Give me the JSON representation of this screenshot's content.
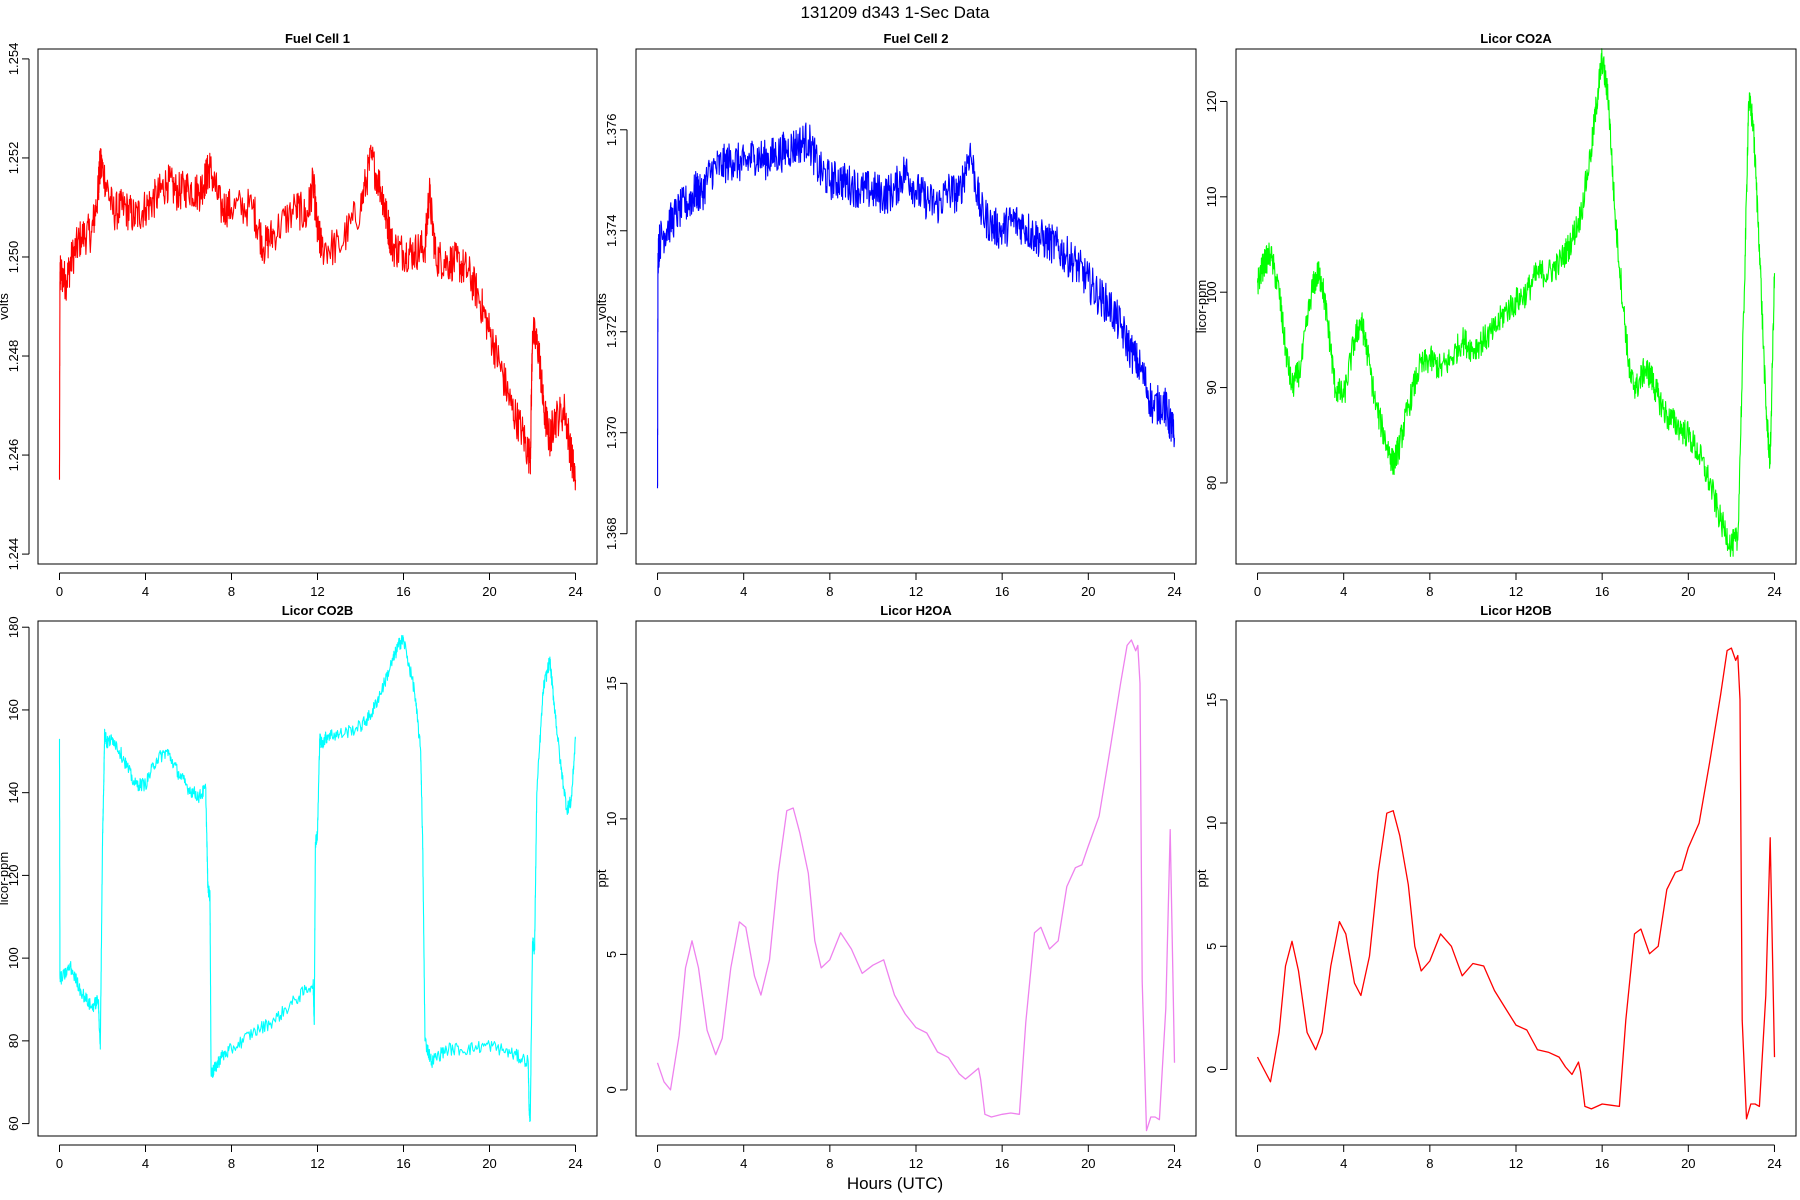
{
  "figure": {
    "title": "131209   d343   1-Sec Data",
    "xlabel": "Hours (UTC)"
  },
  "chart_data": [
    {
      "type": "line",
      "title": "Fuel Cell 1",
      "xlabel": "",
      "ylabel": "volts",
      "color": "#ff0000",
      "xlim": [
        -1,
        25
      ],
      "ylim": [
        1.2438,
        1.2542
      ],
      "xticks": [
        0,
        4,
        8,
        12,
        16,
        20,
        24
      ],
      "yticks": [
        1.244,
        1.246,
        1.248,
        1.25,
        1.252,
        1.254
      ],
      "ytick_labels": [
        "1.244",
        "1.246",
        "1.248",
        "1.250",
        "1.252",
        "1.254"
      ],
      "noise": 0.0004,
      "x": [
        0,
        0.02,
        0.05,
        0.3,
        0.6,
        1,
        1.5,
        1.8,
        1.85,
        2,
        2.5,
        3,
        3.5,
        4,
        4.5,
        5,
        5.5,
        6,
        6.5,
        6.8,
        7,
        7.5,
        8,
        9,
        9.5,
        10,
        11,
        11.5,
        11.8,
        12,
        12.2,
        13,
        14,
        14.5,
        15,
        15.2,
        15.5,
        16,
        16.5,
        17,
        17.2,
        17.5,
        18,
        18.5,
        19,
        19.5,
        20,
        20.5,
        21,
        21.5,
        21.9,
        22,
        22.3,
        22.5,
        22.8,
        23,
        23.5,
        23.8,
        24
      ],
      "y": [
        1.2455,
        1.2495,
        1.2497,
        1.2495,
        1.25,
        1.2504,
        1.2505,
        1.2513,
        1.2518,
        1.2518,
        1.2509,
        1.251,
        1.2508,
        1.251,
        1.2512,
        1.2515,
        1.2513,
        1.2514,
        1.2513,
        1.2516,
        1.2518,
        1.251,
        1.251,
        1.251,
        1.2502,
        1.2505,
        1.251,
        1.2508,
        1.2515,
        1.2505,
        1.2502,
        1.2502,
        1.251,
        1.252,
        1.2513,
        1.2508,
        1.2502,
        1.2501,
        1.2501,
        1.2502,
        1.2513,
        1.25,
        1.2499,
        1.2499,
        1.2497,
        1.2492,
        1.2485,
        1.2478,
        1.247,
        1.2465,
        1.2459,
        1.2485,
        1.2481,
        1.247,
        1.2463,
        1.2467,
        1.2469,
        1.246,
        1.2455
      ]
    },
    {
      "type": "line",
      "title": "Fuel Cell 2",
      "xlabel": "",
      "ylabel": "volts",
      "color": "#0000ff",
      "xlim": [
        -1,
        25
      ],
      "ylim": [
        1.3674,
        1.3776
      ],
      "xticks": [
        0,
        4,
        8,
        12,
        16,
        20,
        24
      ],
      "yticks": [
        1.368,
        1.37,
        1.372,
        1.374,
        1.376
      ],
      "ytick_labels": [
        "1.368",
        "1.370",
        "1.372",
        "1.374",
        "1.376"
      ],
      "noise": 0.0004,
      "x": [
        0,
        0.02,
        0.1,
        0.5,
        1,
        1.5,
        1.8,
        2,
        2.5,
        3,
        3.5,
        4,
        4.5,
        5,
        5.5,
        6,
        6.5,
        7,
        7.5,
        8,
        8.5,
        9,
        9.5,
        10,
        10.5,
        11,
        11.5,
        12,
        12.5,
        13,
        13.5,
        14,
        14.5,
        15,
        15.5,
        16,
        16.5,
        17,
        17.5,
        18,
        18.5,
        19,
        19.5,
        20,
        20.5,
        21,
        21.5,
        22,
        22.5,
        23,
        23.5,
        23.8,
        24
      ],
      "y": [
        1.3689,
        1.3735,
        1.3738,
        1.3741,
        1.3744,
        1.3746,
        1.3748,
        1.3747,
        1.3752,
        1.3753,
        1.3754,
        1.3753,
        1.3755,
        1.3754,
        1.3755,
        1.3756,
        1.3757,
        1.3758,
        1.3752,
        1.375,
        1.375,
        1.3749,
        1.3748,
        1.3748,
        1.3747,
        1.3748,
        1.3752,
        1.3748,
        1.3746,
        1.3745,
        1.3748,
        1.3747,
        1.3756,
        1.3744,
        1.3741,
        1.374,
        1.3742,
        1.3741,
        1.3739,
        1.3738,
        1.3737,
        1.3735,
        1.3733,
        1.373,
        1.3727,
        1.3725,
        1.3721,
        1.3716,
        1.3712,
        1.3705,
        1.3706,
        1.3702,
        1.3699
      ]
    },
    {
      "type": "line",
      "title": "Licor CO2A",
      "xlabel": "",
      "ylabel": "licor-ppm",
      "color": "#00ff00",
      "xlim": [
        -1,
        25
      ],
      "ylim": [
        71.5,
        125.5
      ],
      "xticks": [
        0,
        4,
        8,
        12,
        16,
        20,
        24
      ],
      "yticks": [
        80,
        90,
        100,
        110,
        120
      ],
      "ytick_labels": [
        "80",
        "90",
        "100",
        "110",
        "120"
      ],
      "noise": 1.5,
      "x": [
        0,
        0.3,
        0.6,
        1,
        1.3,
        1.6,
        2,
        2.5,
        2.8,
        3,
        3.3,
        3.6,
        4,
        4.5,
        4.8,
        5,
        5.5,
        6,
        6.3,
        6.6,
        7,
        7.5,
        8,
        8.5,
        9,
        9.5,
        10,
        10.5,
        11,
        11.5,
        12,
        12.5,
        13,
        13.5,
        14,
        14.5,
        15,
        15.5,
        15.8,
        16,
        16.3,
        16.6,
        17,
        17.3,
        17.6,
        18,
        18.3,
        18.6,
        19,
        19.5,
        20,
        20.5,
        21,
        21.5,
        22,
        22.3,
        22.6,
        22.8,
        23,
        23.3,
        23.6,
        23.8,
        24
      ],
      "y": [
        101,
        103,
        104,
        100,
        94,
        90,
        92,
        100,
        102,
        101,
        96,
        90,
        89,
        95,
        97,
        95,
        88,
        84,
        82,
        84,
        88,
        92,
        93,
        92,
        93,
        95,
        94,
        95,
        96,
        98,
        99,
        100,
        102,
        102,
        103,
        105,
        108,
        115,
        121,
        124.5,
        120,
        108,
        98,
        91,
        90,
        92,
        91,
        89,
        87,
        86,
        85,
        83,
        80,
        76,
        73.5,
        74,
        100,
        120,
        118,
        105,
        88,
        82,
        102
      ]
    },
    {
      "type": "line",
      "title": "Licor CO2B",
      "xlabel": "",
      "ylabel": "licor-ppm",
      "color": "#00ffff",
      "xlim": [
        -1,
        25
      ],
      "ylim": [
        57,
        181.5
      ],
      "xticks": [
        0,
        4,
        8,
        12,
        16,
        20,
        24
      ],
      "yticks": [
        60,
        80,
        100,
        120,
        140,
        160,
        180
      ],
      "ytick_labels": [
        "60",
        "80",
        "100",
        "120",
        "140",
        "160",
        "180"
      ],
      "noise": 1.6,
      "x": [
        0,
        0.02,
        0.1,
        0.5,
        1,
        1.5,
        1.8,
        1.9,
        2,
        2.05,
        2.1,
        2.2,
        2.5,
        3,
        3.5,
        4,
        4.5,
        5,
        5.5,
        6,
        6.5,
        6.8,
        6.9,
        7,
        7.05,
        7.2,
        7.5,
        8,
        9,
        10,
        11,
        11.8,
        11.85,
        11.9,
        12,
        12.1,
        12.2,
        12.5,
        13,
        14,
        14.5,
        15,
        15.5,
        15.8,
        16,
        16.5,
        16.8,
        16.9,
        17,
        17.3,
        18,
        19,
        20,
        21,
        21.8,
        21.85,
        21.9,
        22,
        22.1,
        22.2,
        22.5,
        22.8,
        23,
        23.3,
        23.6,
        23.8,
        24
      ],
      "y": [
        153,
        96,
        95,
        98,
        92,
        88,
        90,
        78,
        128,
        140,
        155,
        152,
        153,
        148,
        142,
        142,
        148,
        150,
        145,
        141,
        139,
        141,
        117,
        115,
        72,
        73,
        76,
        78,
        82,
        85,
        90,
        94,
        84,
        128,
        130,
        153,
        152,
        154,
        154,
        156,
        159,
        165,
        172,
        176,
        177,
        165,
        150,
        125,
        80,
        75,
        78,
        78,
        79,
        77,
        75,
        62,
        62,
        104,
        102,
        140,
        165,
        172,
        162,
        147,
        136,
        138,
        153
      ]
    },
    {
      "type": "line",
      "title": "Licor H2OA",
      "xlabel": "",
      "ylabel": "ppt",
      "color": "#ee82ee",
      "xlim": [
        -1,
        25
      ],
      "ylim": [
        -1.7,
        17.3
      ],
      "xticks": [
        0,
        4,
        8,
        12,
        16,
        20,
        24
      ],
      "yticks": [
        0,
        5,
        10,
        15
      ],
      "ytick_labels": [
        "0",
        "5",
        "10",
        "15"
      ],
      "noise": 0.0,
      "x": [
        0,
        0.3,
        0.6,
        1,
        1.3,
        1.6,
        1.9,
        2.3,
        2.7,
        3,
        3.4,
        3.8,
        4.1,
        4.5,
        4.8,
        5.2,
        5.6,
        6,
        6.3,
        6.6,
        7,
        7.3,
        7.6,
        8,
        8.5,
        9,
        9.5,
        10,
        10.5,
        11,
        11.5,
        12,
        12.5,
        13,
        13.5,
        14,
        14.3,
        14.6,
        14.9,
        15,
        15.2,
        15.5,
        16,
        16.4,
        16.8,
        17.1,
        17.5,
        17.8,
        18.2,
        18.6,
        19,
        19.4,
        19.7,
        20,
        20.5,
        21,
        21.5,
        21.8,
        22,
        22.2,
        22.3,
        22.4,
        22.5,
        22.7,
        22.9,
        23.1,
        23.3,
        23.6,
        23.8,
        24
      ],
      "y": [
        1,
        0.3,
        0,
        2,
        4.5,
        5.5,
        4.5,
        2.2,
        1.3,
        1.9,
        4.5,
        6.2,
        6,
        4.2,
        3.5,
        4.8,
        8,
        10.3,
        10.4,
        9.5,
        8,
        5.5,
        4.5,
        4.8,
        5.8,
        5.2,
        4.3,
        4.6,
        4.8,
        3.5,
        2.8,
        2.3,
        2.1,
        1.4,
        1.2,
        0.6,
        0.4,
        0.6,
        0.8,
        0.4,
        -0.9,
        -1,
        -0.9,
        -0.85,
        -0.9,
        2.5,
        5.8,
        6,
        5.2,
        5.5,
        7.5,
        8.2,
        8.3,
        9,
        10.1,
        12.5,
        15,
        16.4,
        16.6,
        16.2,
        16.4,
        15,
        4,
        -1.5,
        -1,
        -1,
        -1.1,
        3,
        9.6,
        1
      ]
    },
    {
      "type": "line",
      "title": "Licor H2OB",
      "xlabel": "",
      "ylabel": "ppt",
      "color": "#ff0000",
      "xlim": [
        -1,
        25
      ],
      "ylim": [
        -2.7,
        18.2
      ],
      "xticks": [
        0,
        4,
        8,
        12,
        16,
        20,
        24
      ],
      "yticks": [
        0,
        5,
        10,
        15
      ],
      "ytick_labels": [
        "0",
        "5",
        "10",
        "15"
      ],
      "noise": 0.0,
      "x": [
        0,
        0.3,
        0.6,
        1,
        1.3,
        1.6,
        1.9,
        2.3,
        2.7,
        3,
        3.4,
        3.8,
        4.1,
        4.5,
        4.8,
        5.2,
        5.6,
        6,
        6.3,
        6.6,
        7,
        7.3,
        7.6,
        8,
        8.5,
        9,
        9.5,
        10,
        10.5,
        11,
        11.5,
        12,
        12.5,
        13,
        13.5,
        14,
        14.3,
        14.6,
        14.9,
        15,
        15.2,
        15.5,
        16,
        16.4,
        16.8,
        17.1,
        17.5,
        17.8,
        18.2,
        18.6,
        19,
        19.4,
        19.7,
        20,
        20.5,
        21,
        21.5,
        21.8,
        22,
        22.2,
        22.3,
        22.4,
        22.5,
        22.7,
        22.9,
        23.1,
        23.3,
        23.6,
        23.8,
        24
      ],
      "y": [
        0.5,
        0,
        -0.5,
        1.5,
        4.2,
        5.2,
        4,
        1.5,
        0.8,
        1.5,
        4.2,
        6,
        5.5,
        3.5,
        3,
        4.6,
        8,
        10.4,
        10.5,
        9.5,
        7.5,
        5,
        4,
        4.4,
        5.5,
        5,
        3.8,
        4.3,
        4.2,
        3.2,
        2.5,
        1.8,
        1.6,
        0.8,
        0.7,
        0.5,
        0.1,
        -0.2,
        0.3,
        -0.1,
        -1.5,
        -1.6,
        -1.4,
        -1.45,
        -1.5,
        2,
        5.5,
        5.7,
        4.7,
        5,
        7.3,
        8,
        8.1,
        9,
        10,
        12.5,
        15.2,
        17,
        17.1,
        16.6,
        16.8,
        15,
        2,
        -2,
        -1.4,
        -1.4,
        -1.5,
        3,
        9.4,
        0.5
      ]
    }
  ]
}
